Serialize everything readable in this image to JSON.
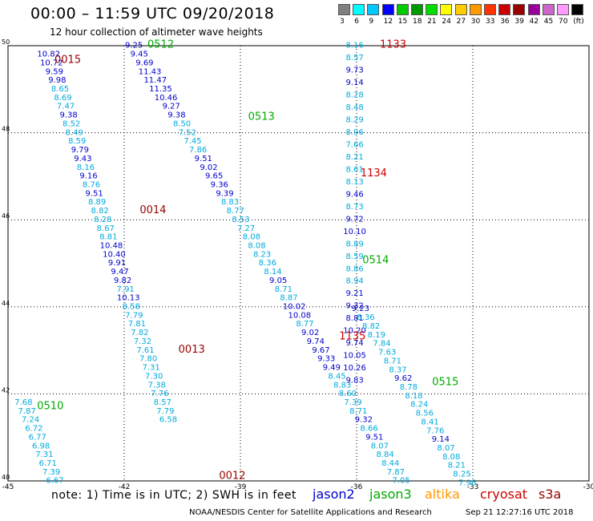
{
  "chart_data": {
    "type": "scatter",
    "title": "00:00 – 11:59 UTC 09/20/2018",
    "subtitle": "12 hour collection of altimeter wave heights",
    "xlim": [
      -45,
      -30
    ],
    "ylim": [
      40,
      50
    ],
    "x_ticks": [
      "-45",
      "-42",
      "-39",
      "-36",
      "-33",
      "-30"
    ],
    "y_ticks": [
      "40",
      "42",
      "44",
      "46",
      "48",
      "50"
    ],
    "grid": true,
    "colorbar": {
      "labels": [
        "3",
        "6",
        "9",
        "12",
        "15",
        "18",
        "21",
        "24",
        "27",
        "30",
        "33",
        "36",
        "39",
        "42",
        "45",
        "70",
        "(ft)"
      ],
      "colors": [
        "#808080",
        "#00ffff",
        "#00c8ff",
        "#0000ff",
        "#00cc00",
        "#009900",
        "#00dd00",
        "#ffff00",
        "#ffcc00",
        "#ff9900",
        "#ff3300",
        "#cc0000",
        "#990000",
        "#990099",
        "#cc66cc",
        "#ff99ff",
        "#000000"
      ]
    },
    "satellites": [
      {
        "name": "jason2",
        "color": "#0000cc"
      },
      {
        "name": "jason3",
        "color": "#00aa00"
      },
      {
        "name": "altika",
        "color": "#ff9900"
      },
      {
        "name": "cryosat",
        "color": "#cc0000"
      },
      {
        "name": "s3a",
        "color": "#990000"
      }
    ],
    "tracks": [
      {
        "time_label": "0015",
        "label_color": "#990000",
        "label_x": -43.8,
        "label_y": 49.6,
        "lon_start": -43.95,
        "lat_start": 49.75,
        "lon_step": 0.0735,
        "lat_step": -0.2,
        "values": [
          "10.82",
          "10.72",
          "9.59",
          "9.98",
          "8.65",
          "8.69",
          "7.47",
          "9.38",
          "8.52",
          "8.49",
          "8.59",
          "9.79",
          "9.43",
          "8.16",
          "9.16",
          "8.76",
          "9.51",
          "8.89",
          "8.82",
          "8.28",
          "8.67",
          "8.81",
          "10.48",
          "10.40",
          "9.91",
          "9.47",
          "9.82",
          "7.91",
          "10.13",
          "8.58",
          "7.79",
          "7.81",
          "7.82",
          "7.32",
          "7.61",
          "7.80",
          "7.31",
          "7.30",
          "7.38",
          "7.76",
          "8.57",
          "7.79",
          "6.58"
        ],
        "colors": [
          "#0000cc",
          "#0000cc",
          "#0000cc",
          "#0000cc",
          "#00aadd",
          "#00aadd",
          "#00aadd",
          "#0000cc",
          "#00aadd",
          "#00aadd",
          "#00aadd",
          "#0000cc",
          "#0000cc",
          "#00aadd",
          "#0000cc",
          "#00aadd",
          "#0000cc",
          "#00aadd",
          "#00aadd",
          "#00aadd",
          "#00aadd",
          "#00aadd",
          "#0000cc",
          "#0000cc",
          "#0000cc",
          "#0000cc",
          "#0000cc",
          "#00aadd",
          "#0000cc",
          "#00aadd",
          "#00aadd",
          "#00aadd",
          "#00aadd",
          "#00aadd",
          "#00aadd",
          "#00aadd",
          "#00aadd",
          "#00aadd",
          "#00aadd",
          "#00aadd",
          "#00aadd",
          "#00aadd",
          "#00aadd"
        ]
      },
      {
        "time_label": "0014",
        "label_color": "#990000",
        "label_x": -41.6,
        "label_y": 46.15,
        "lon_start": null,
        "lat_start": null,
        "lon_step": null,
        "lat_step": null,
        "values": [],
        "colors": []
      },
      {
        "time_label": "0013",
        "label_color": "#990000",
        "label_x": -40.6,
        "label_y": 42.95,
        "lon_start": null,
        "lat_start": null,
        "lon_step": null,
        "lat_step": null,
        "values": [],
        "colors": []
      },
      {
        "time_label": "0012",
        "label_color": "#990000",
        "label_x": -39.55,
        "label_y": 40.05,
        "lon_start": null,
        "lat_start": null,
        "lon_step": null,
        "lat_step": null,
        "values": [],
        "colors": []
      },
      {
        "time_label": "0512",
        "label_color": "#00aa00",
        "label_x": -41.4,
        "label_y": 49.95,
        "lon_start": -41.75,
        "lat_start": 49.95,
        "lon_step": 0.138,
        "lat_step": -0.2,
        "values": [
          "9.25",
          "9.45",
          "9.69",
          "11.43",
          "11.47",
          "11.35",
          "10.46",
          "9.27",
          "9.38",
          "8.50",
          "7.52",
          "7.45",
          "7.86",
          "9.51",
          "9.02",
          "9.65",
          "9.36",
          "9.39",
          "8.83",
          "8.77",
          "8.53",
          "7.27",
          "8.08",
          "8.08",
          "8.23",
          "8.36",
          "8.14",
          "9.05",
          "8.71",
          "8.87",
          "10.02",
          "10.08",
          "8.77",
          "9.02",
          "9.74",
          "9.67",
          "9.33",
          "9.49",
          "8.45",
          "8.83",
          "8.60",
          "7.39",
          "8.71",
          "9.32",
          "8.66",
          "9.51",
          "8.07",
          "8.84",
          "8.44",
          "7.87",
          "7.05"
        ],
        "colors": [
          "#0000cc",
          "#0000cc",
          "#0000cc",
          "#0000cc",
          "#0000cc",
          "#0000cc",
          "#0000cc",
          "#0000cc",
          "#0000cc",
          "#00aadd",
          "#00aadd",
          "#00aadd",
          "#00aadd",
          "#0000cc",
          "#0000cc",
          "#0000cc",
          "#0000cc",
          "#0000cc",
          "#00aadd",
          "#00aadd",
          "#00aadd",
          "#00aadd",
          "#00aadd",
          "#00aadd",
          "#00aadd",
          "#00aadd",
          "#00aadd",
          "#0000cc",
          "#00aadd",
          "#00aadd",
          "#0000cc",
          "#0000cc",
          "#00aadd",
          "#0000cc",
          "#0000cc",
          "#0000cc",
          "#0000cc",
          "#0000cc",
          "#00aadd",
          "#00aadd",
          "#00aadd",
          "#00aadd",
          "#00aadd",
          "#0000cc",
          "#00aadd",
          "#0000cc",
          "#00aadd",
          "#00aadd",
          "#00aadd",
          "#00aadd",
          "#00aadd"
        ]
      },
      {
        "time_label": "0513",
        "label_color": "#00aa00",
        "label_x": -38.8,
        "label_y": 48.3,
        "lon_start": null,
        "lat_start": null,
        "lon_step": null,
        "lat_step": null,
        "values": [],
        "colors": []
      },
      {
        "time_label": "0514",
        "label_color": "#00aa00",
        "label_x": -35.85,
        "label_y": 45.0,
        "lon_start": null,
        "lat_start": null,
        "lon_step": null,
        "lat_step": null,
        "values": [],
        "colors": []
      },
      {
        "time_label": "0515",
        "label_color": "#00aa00",
        "label_x": -34.05,
        "label_y": 42.2,
        "lon_start": null,
        "lat_start": null,
        "lon_step": null,
        "lat_step": null,
        "values": [],
        "colors": []
      },
      {
        "time_label": "0510",
        "label_color": "#00aa00",
        "label_x": -44.25,
        "label_y": 41.65,
        "lon_start": -44.6,
        "lat_start": 41.75,
        "lon_step": 0.09,
        "lat_step": -0.2,
        "values": [
          "7.68",
          "7.87",
          "7.24",
          "6.72",
          "6.77",
          "6.98",
          "7.31",
          "6.71",
          "7.39",
          "6.67"
        ],
        "colors": [
          "#00aadd",
          "#00aadd",
          "#00aadd",
          "#00aadd",
          "#00aadd",
          "#00aadd",
          "#00aadd",
          "#00aadd",
          "#00aadd",
          "#00aadd"
        ]
      },
      {
        "time_label": "1133",
        "label_color": "#cc0000",
        "label_x": -35.4,
        "label_y": 49.95,
        "lon_start": -36.05,
        "lat_start": 49.95,
        "lon_step": 0.0,
        "lat_step": -0.285,
        "values": [
          "8.16",
          "8.57",
          "9.73",
          "9.14",
          "8.28",
          "8.48",
          "8.29",
          "8.96",
          "7.66",
          "8.21",
          "8.61",
          "8.13",
          "9.46",
          "8.73",
          "9.72",
          "10.10",
          "8.89",
          "8.59",
          "8.86",
          "8.94",
          "9.21",
          "9.32",
          "8.81",
          "10.20",
          "9.74",
          "10.05",
          "10.26",
          "9.83"
        ],
        "colors": [
          "#00aadd",
          "#00aadd",
          "#0000cc",
          "#0000cc",
          "#00aadd",
          "#00aadd",
          "#00aadd",
          "#00aadd",
          "#00aadd",
          "#00aadd",
          "#00aadd",
          "#00aadd",
          "#0000cc",
          "#00aadd",
          "#0000cc",
          "#0000cc",
          "#00aadd",
          "#00aadd",
          "#00aadd",
          "#00aadd",
          "#0000cc",
          "#0000cc",
          "#0000cc",
          "#0000cc",
          "#0000cc",
          "#0000cc",
          "#0000cc",
          "#0000cc"
        ]
      },
      {
        "time_label": "1134",
        "label_color": "#cc0000",
        "label_x": -35.9,
        "label_y": 47.0,
        "lon_start": null,
        "lat_start": null,
        "lon_step": null,
        "lat_step": null,
        "values": [],
        "colors": []
      },
      {
        "time_label": "1135",
        "label_color": "#cc0000",
        "label_x": -36.45,
        "label_y": 43.25,
        "lon_start": -35.9,
        "lat_start": 43.9,
        "lon_step": 0.138,
        "lat_step": -0.2,
        "values": [
          "9.23",
          "8.36",
          "8.82",
          "8.19",
          "7.84",
          "7.63",
          "8.71",
          "8.37",
          "9.62",
          "8.78",
          "8.18",
          "8.24",
          "8.56",
          "8.41",
          "7.76",
          "9.14",
          "8.07",
          "8.08",
          "8.21",
          "8.25",
          "7.96"
        ],
        "colors": [
          "#0000cc",
          "#00aadd",
          "#00aadd",
          "#00aadd",
          "#00aadd",
          "#00aadd",
          "#00aadd",
          "#00aadd",
          "#0000cc",
          "#00aadd",
          "#00aadd",
          "#00aadd",
          "#00aadd",
          "#00aadd",
          "#00aadd",
          "#0000cc",
          "#00aadd",
          "#00aadd",
          "#00aadd",
          "#00aadd",
          "#00aadd"
        ]
      }
    ]
  },
  "footer": {
    "note": "note:  1) Time is in UTC;  2) SWH is in feet",
    "credit": "NOAA/NESDIS Center for Satellite Applications and Research",
    "timestamp": "Sep 21 12:27:16 UTC 2018"
  }
}
